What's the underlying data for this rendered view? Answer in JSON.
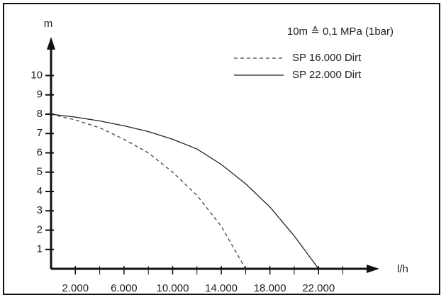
{
  "chart_data": {
    "type": "line",
    "annotation": "10m ≙ 0,1 MPa (1bar)",
    "y_label": "m",
    "x_label": "l/h",
    "xlim": [
      0,
      27000
    ],
    "ylim": [
      0,
      12
    ],
    "yticks": [
      1,
      2,
      3,
      4,
      5,
      6,
      7,
      8,
      9,
      10
    ],
    "xticks": [
      {
        "value": 2000,
        "label": "2.000"
      },
      {
        "value": 6000,
        "label": "6.000"
      },
      {
        "value": 10000,
        "label": "10.000"
      },
      {
        "value": 14000,
        "label": "14.000"
      },
      {
        "value": 18000,
        "label": "18.000"
      },
      {
        "value": 22000,
        "label": "22.000"
      }
    ],
    "xminor_ticks": [
      4000,
      8000,
      12000,
      16000,
      20000,
      24000
    ],
    "color": "#333333",
    "series": [
      {
        "name": "SP 16.000 Dirt",
        "dashed": true,
        "color": "#444444",
        "x": [
          0,
          2000,
          4000,
          6000,
          8000,
          10000,
          12000,
          14000,
          16000
        ],
        "values": [
          8,
          7.7,
          7.3,
          6.7,
          6.0,
          5.0,
          3.8,
          2.2,
          0
        ]
      },
      {
        "name": "SP 22.000 Dirt",
        "dashed": false,
        "color": "#222222",
        "x": [
          0,
          2000,
          4000,
          6000,
          8000,
          10000,
          12000,
          14000,
          16000,
          18000,
          20000,
          22000
        ],
        "values": [
          8,
          7.85,
          7.65,
          7.4,
          7.1,
          6.7,
          6.2,
          5.4,
          4.4,
          3.2,
          1.7,
          0
        ]
      }
    ]
  }
}
